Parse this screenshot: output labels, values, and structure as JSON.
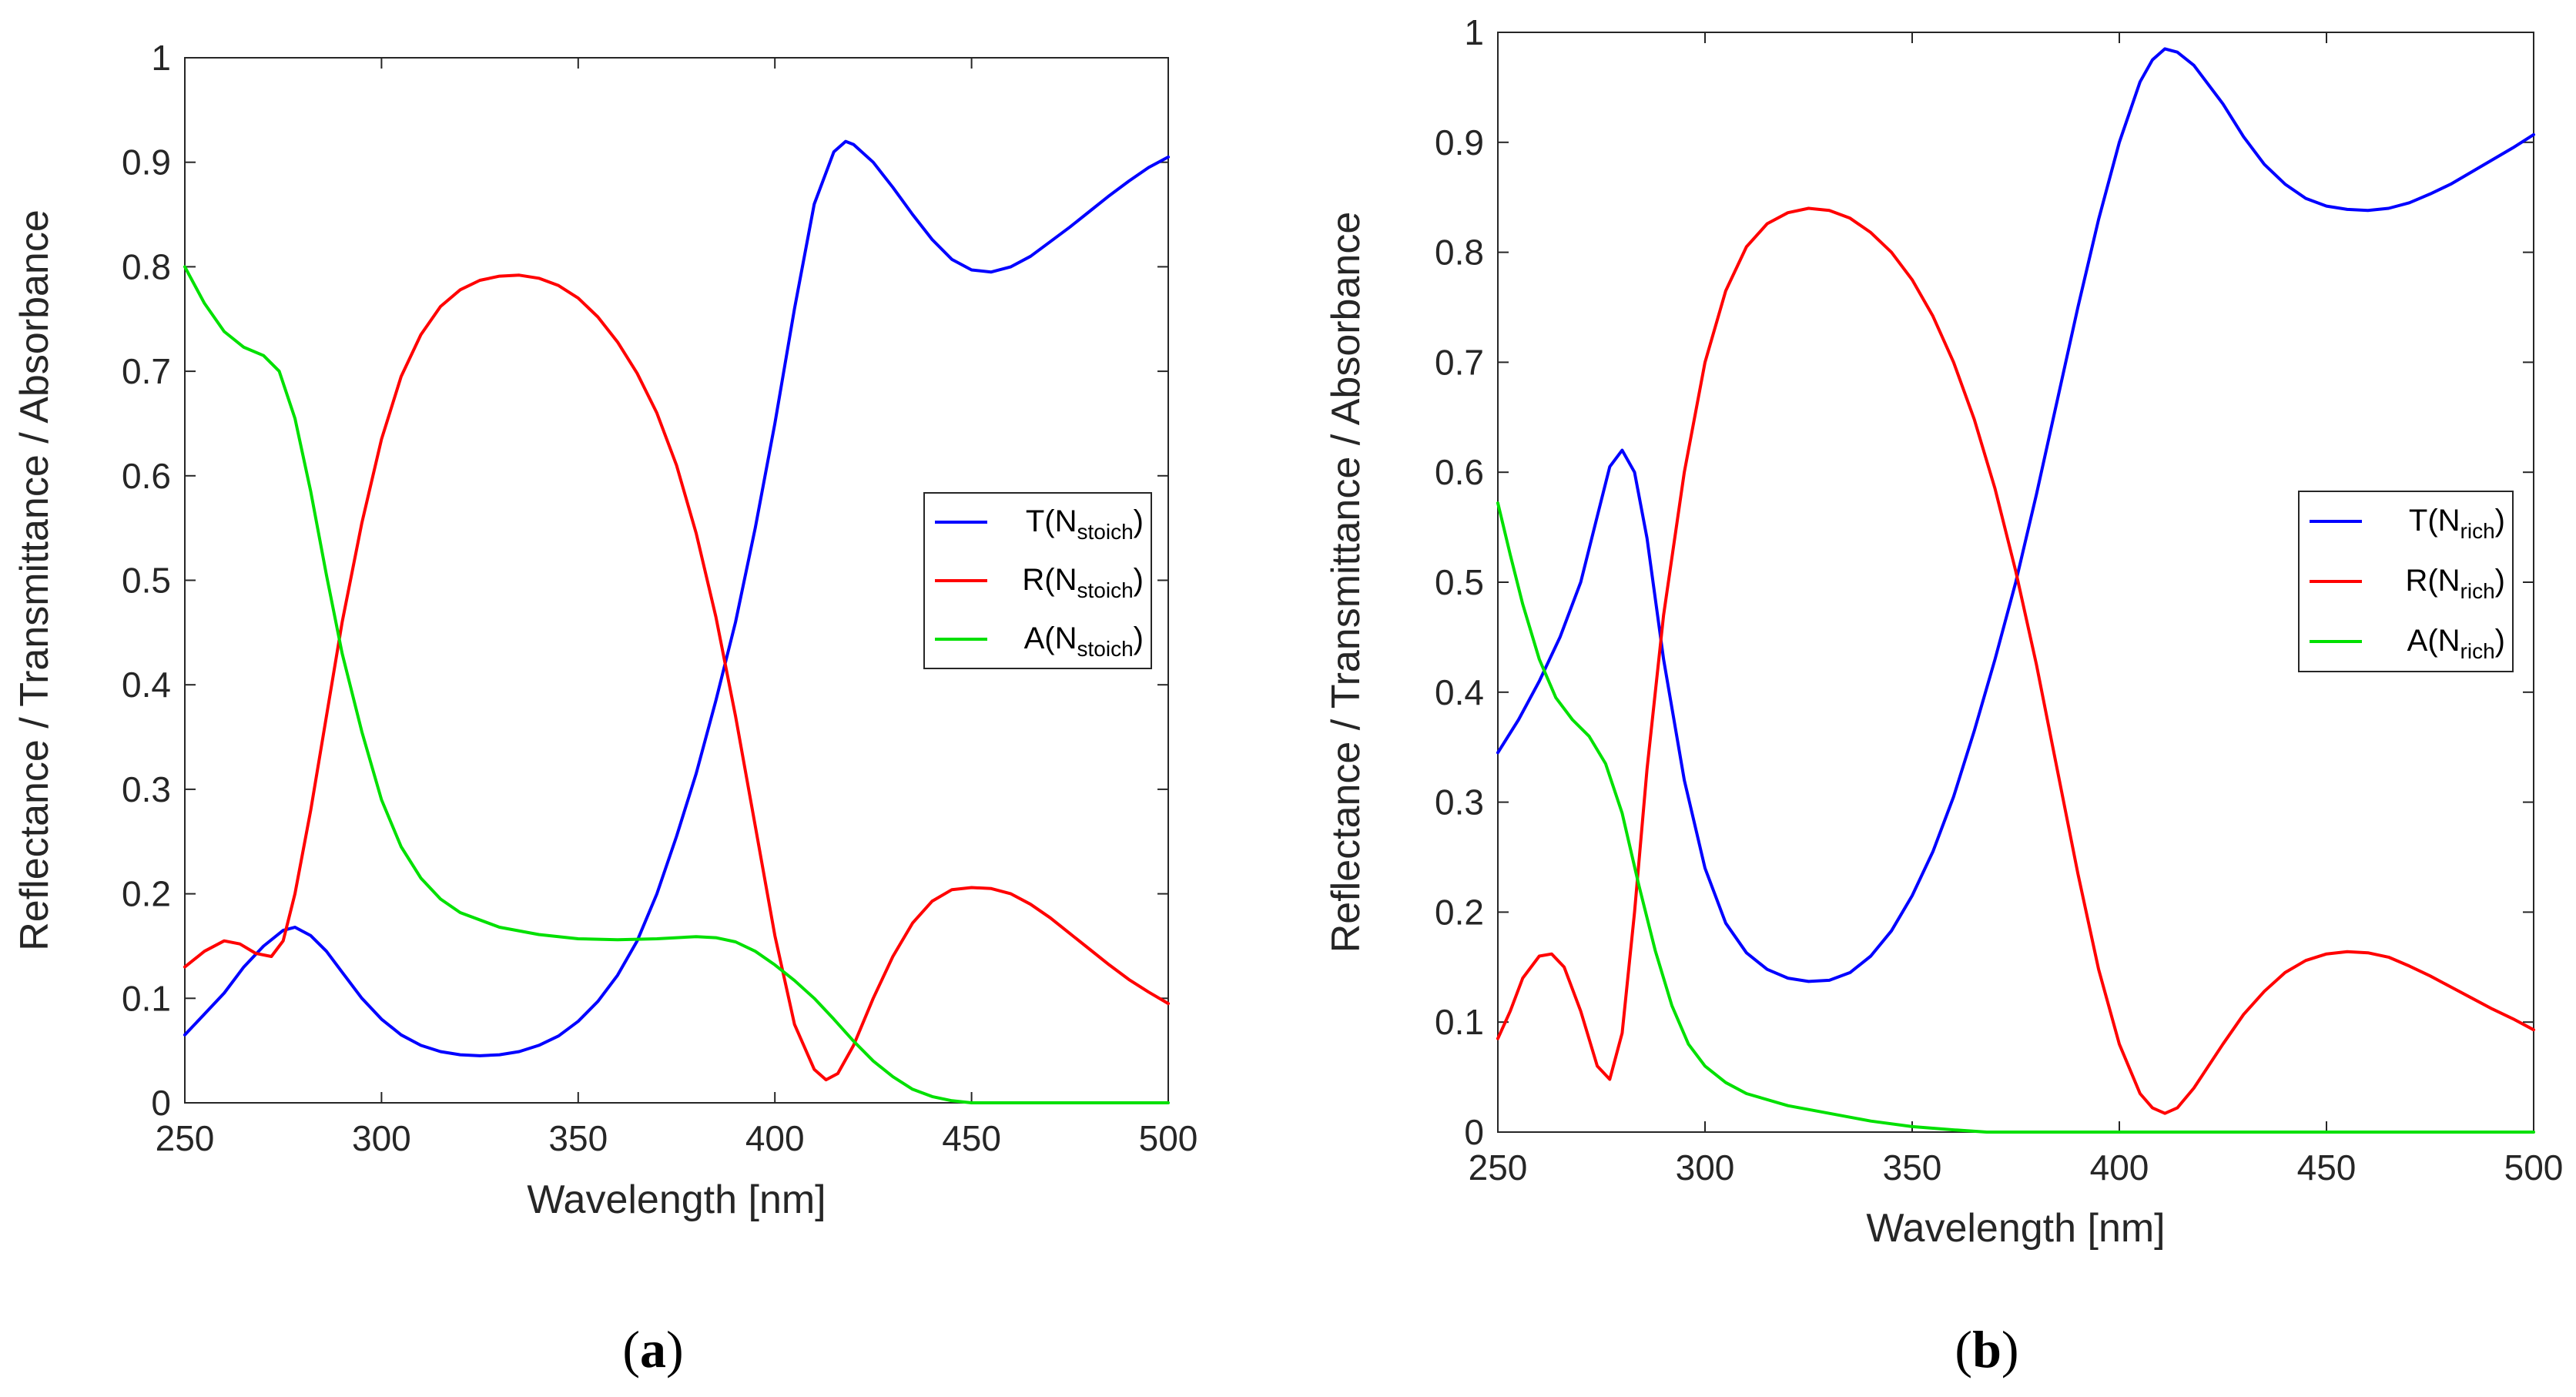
{
  "figure": {
    "panel_labels": [
      {
        "open": "(",
        "letter": "a",
        "close": ")"
      },
      {
        "open": "(",
        "letter": "b",
        "close": ")"
      }
    ]
  },
  "chart_data": [
    {
      "type": "line",
      "panel": "a",
      "xlabel": "Wavelength [nm]",
      "ylabel": "Reflectance / Transmittance / Absorbance",
      "xlim": [
        250,
        500
      ],
      "ylim": [
        0,
        1
      ],
      "xticks": [
        "250",
        "300",
        "350",
        "400",
        "450",
        "500"
      ],
      "yticks": [
        "0",
        "0.1",
        "0.2",
        "0.3",
        "0.4",
        "0.5",
        "0.6",
        "0.7",
        "0.8",
        "0.9",
        "1"
      ],
      "legend_position": "right-middle",
      "series": [
        {
          "name": "T(Nstoich)",
          "label_main": "T(N",
          "label_sub": "stoich",
          "label_close": ")",
          "color": "#0000ff",
          "x": [
            250,
            255,
            260,
            265,
            270,
            275,
            278,
            282,
            286,
            290,
            295,
            300,
            305,
            310,
            315,
            320,
            325,
            330,
            335,
            340,
            345,
            350,
            355,
            360,
            365,
            370,
            375,
            380,
            385,
            390,
            395,
            400,
            405,
            410,
            415,
            418,
            420,
            425,
            430,
            435,
            440,
            445,
            450,
            455,
            460,
            465,
            470,
            475,
            480,
            485,
            490,
            495,
            500
          ],
          "y": [
            0.065,
            0.085,
            0.105,
            0.13,
            0.15,
            0.165,
            0.168,
            0.16,
            0.145,
            0.125,
            0.1,
            0.08,
            0.065,
            0.055,
            0.049,
            0.046,
            0.045,
            0.046,
            0.049,
            0.055,
            0.064,
            0.078,
            0.097,
            0.122,
            0.155,
            0.2,
            0.255,
            0.315,
            0.385,
            0.46,
            0.55,
            0.65,
            0.76,
            0.86,
            0.91,
            0.92,
            0.917,
            0.9,
            0.876,
            0.85,
            0.826,
            0.807,
            0.797,
            0.795,
            0.8,
            0.81,
            0.824,
            0.838,
            0.853,
            0.868,
            0.882,
            0.895,
            0.905
          ]
        },
        {
          "name": "R(Nstoich)",
          "label_main": "R(N",
          "label_sub": "stoich",
          "label_close": ")",
          "color": "#ff0000",
          "x": [
            250,
            255,
            260,
            264,
            268,
            272,
            275,
            278,
            282,
            286,
            290,
            295,
            300,
            305,
            310,
            315,
            320,
            325,
            330,
            335,
            340,
            345,
            350,
            355,
            360,
            365,
            370,
            375,
            380,
            385,
            390,
            395,
            400,
            405,
            410,
            413,
            416,
            420,
            425,
            430,
            435,
            440,
            445,
            450,
            455,
            460,
            465,
            470,
            475,
            480,
            485,
            490,
            495,
            500
          ],
          "y": [
            0.13,
            0.145,
            0.155,
            0.152,
            0.143,
            0.14,
            0.155,
            0.2,
            0.28,
            0.37,
            0.46,
            0.555,
            0.635,
            0.695,
            0.735,
            0.762,
            0.778,
            0.787,
            0.791,
            0.792,
            0.789,
            0.782,
            0.77,
            0.752,
            0.728,
            0.698,
            0.66,
            0.61,
            0.545,
            0.465,
            0.37,
            0.265,
            0.16,
            0.075,
            0.032,
            0.022,
            0.028,
            0.055,
            0.1,
            0.14,
            0.172,
            0.193,
            0.204,
            0.206,
            0.205,
            0.2,
            0.19,
            0.177,
            0.162,
            0.147,
            0.132,
            0.118,
            0.106,
            0.095
          ]
        },
        {
          "name": "A(Nstoich)",
          "label_main": "A(N",
          "label_sub": "stoich",
          "label_close": ")",
          "color": "#00e000",
          "x": [
            250,
            255,
            260,
            265,
            270,
            274,
            278,
            282,
            286,
            290,
            295,
            300,
            305,
            310,
            315,
            320,
            330,
            340,
            350,
            360,
            370,
            375,
            380,
            385,
            390,
            395,
            400,
            405,
            410,
            415,
            420,
            425,
            430,
            435,
            440,
            445,
            450,
            460,
            470,
            480,
            490,
            500
          ],
          "y": [
            0.8,
            0.765,
            0.738,
            0.723,
            0.715,
            0.7,
            0.655,
            0.585,
            0.505,
            0.43,
            0.355,
            0.29,
            0.245,
            0.215,
            0.195,
            0.182,
            0.168,
            0.161,
            0.157,
            0.156,
            0.157,
            0.158,
            0.159,
            0.158,
            0.154,
            0.145,
            0.132,
            0.117,
            0.1,
            0.08,
            0.059,
            0.04,
            0.025,
            0.013,
            0.006,
            0.002,
            0.0,
            0.0,
            0.0,
            0.0,
            0.0,
            0.0
          ]
        }
      ]
    },
    {
      "type": "line",
      "panel": "b",
      "xlabel": "Wavelength [nm]",
      "ylabel": "Reflectance / Transmittance / Absorbance",
      "xlim": [
        250,
        500
      ],
      "ylim": [
        0,
        1
      ],
      "xticks": [
        "250",
        "300",
        "350",
        "400",
        "450",
        "500"
      ],
      "yticks": [
        "0",
        "0.1",
        "0.2",
        "0.3",
        "0.4",
        "0.5",
        "0.6",
        "0.7",
        "0.8",
        "0.9",
        "1"
      ],
      "legend_position": "right-middle",
      "series": [
        {
          "name": "T(Nrich)",
          "label_main": "T(N",
          "label_sub": "rich",
          "label_close": ")",
          "color": "#0000ff",
          "x": [
            250,
            255,
            260,
            265,
            270,
            274,
            277,
            280,
            283,
            286,
            290,
            295,
            300,
            305,
            310,
            315,
            320,
            325,
            330,
            335,
            340,
            345,
            350,
            355,
            360,
            365,
            370,
            375,
            380,
            385,
            390,
            395,
            400,
            405,
            408,
            411,
            414,
            418,
            425,
            430,
            435,
            440,
            445,
            450,
            455,
            460,
            465,
            470,
            475,
            480,
            485,
            490,
            495,
            500
          ],
          "y": [
            0.345,
            0.375,
            0.41,
            0.45,
            0.5,
            0.56,
            0.605,
            0.62,
            0.6,
            0.54,
            0.43,
            0.32,
            0.24,
            0.19,
            0.163,
            0.148,
            0.14,
            0.137,
            0.138,
            0.145,
            0.16,
            0.183,
            0.215,
            0.255,
            0.305,
            0.365,
            0.43,
            0.5,
            0.58,
            0.665,
            0.75,
            0.83,
            0.9,
            0.955,
            0.975,
            0.985,
            0.982,
            0.97,
            0.935,
            0.905,
            0.88,
            0.862,
            0.849,
            0.842,
            0.839,
            0.838,
            0.84,
            0.845,
            0.853,
            0.862,
            0.873,
            0.884,
            0.895,
            0.907
          ]
        },
        {
          "name": "R(Nrich)",
          "label_main": "R(N",
          "label_sub": "rich",
          "label_close": ")",
          "color": "#ff0000",
          "x": [
            250,
            253,
            256,
            260,
            263,
            266,
            270,
            274,
            277,
            280,
            283,
            286,
            290,
            295,
            300,
            305,
            310,
            315,
            320,
            325,
            330,
            335,
            340,
            345,
            350,
            355,
            360,
            365,
            370,
            375,
            380,
            385,
            390,
            395,
            400,
            405,
            408,
            411,
            414,
            418,
            425,
            430,
            435,
            440,
            445,
            450,
            455,
            460,
            465,
            470,
            475,
            480,
            485,
            490,
            495,
            500
          ],
          "y": [
            0.085,
            0.11,
            0.14,
            0.16,
            0.162,
            0.15,
            0.11,
            0.06,
            0.048,
            0.09,
            0.2,
            0.33,
            0.47,
            0.6,
            0.7,
            0.765,
            0.805,
            0.826,
            0.836,
            0.84,
            0.838,
            0.831,
            0.818,
            0.8,
            0.775,
            0.742,
            0.7,
            0.648,
            0.585,
            0.51,
            0.425,
            0.33,
            0.235,
            0.148,
            0.08,
            0.035,
            0.022,
            0.017,
            0.022,
            0.04,
            0.08,
            0.107,
            0.128,
            0.145,
            0.156,
            0.162,
            0.164,
            0.163,
            0.159,
            0.151,
            0.142,
            0.132,
            0.122,
            0.112,
            0.103,
            0.093
          ]
        },
        {
          "name": "A(Nrich)",
          "label_main": "A(N",
          "label_sub": "rich",
          "label_close": ")",
          "color": "#00e000",
          "x": [
            250,
            253,
            256,
            260,
            264,
            268,
            272,
            276,
            280,
            284,
            288,
            292,
            296,
            300,
            305,
            310,
            320,
            330,
            340,
            350,
            360,
            368,
            380,
            400,
            420,
            440,
            460,
            480,
            500
          ],
          "y": [
            0.572,
            0.525,
            0.48,
            0.43,
            0.395,
            0.375,
            0.36,
            0.335,
            0.29,
            0.225,
            0.165,
            0.115,
            0.08,
            0.06,
            0.045,
            0.035,
            0.024,
            0.017,
            0.01,
            0.005,
            0.002,
            0.0,
            0.0,
            0.0,
            0.0,
            0.0,
            0.0,
            0.0,
            0.0
          ]
        }
      ]
    }
  ]
}
